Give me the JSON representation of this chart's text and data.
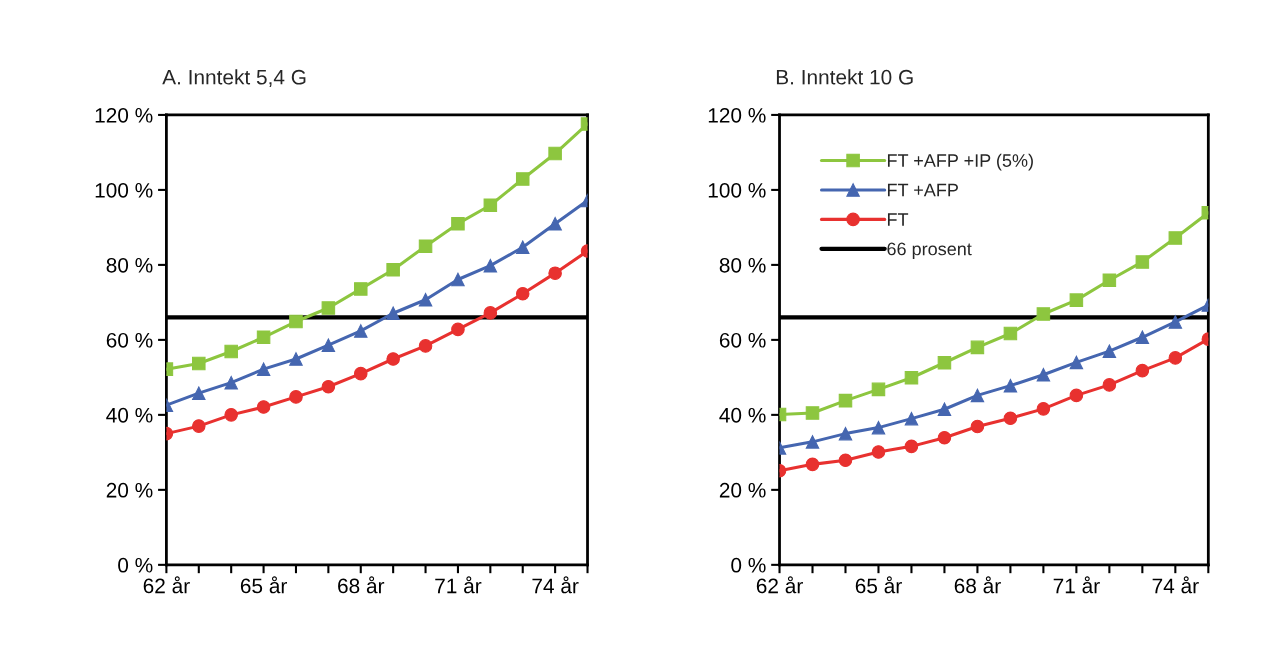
{
  "chart_data": [
    {
      "type": "line",
      "title": "A. Inntekt 5,4 G",
      "categories": [
        "62 år",
        null,
        null,
        "65 år",
        null,
        null,
        "68 år",
        null,
        null,
        "71 år",
        null,
        null,
        "74 år",
        null
      ],
      "series": [
        {
          "color": "#8dc63f",
          "marker": "square",
          "values": [
            52.2,
            53.7,
            56.9,
            60.7,
            64.9,
            68.5,
            73.6,
            78.7,
            85,
            91,
            95.9,
            102.9,
            109.7,
            117.6
          ]
        },
        {
          "color": "#4566b0",
          "marker": "triangle",
          "values": [
            42.6,
            45.8,
            48.6,
            52.2,
            54.9,
            58.6,
            62.4,
            67.1,
            70.7,
            76.1,
            79.8,
            84.7,
            91,
            97.2
          ]
        },
        {
          "color": "#e8312f",
          "marker": "circle",
          "values": [
            35,
            37,
            40,
            42.1,
            44.8,
            47.5,
            51,
            54.9,
            58.4,
            62.8,
            67.2,
            72.3,
            77.8,
            83.7
          ]
        }
      ],
      "ref_lines": [
        {
          "axis": "y",
          "value": 66,
          "color": "#000000"
        }
      ],
      "ylim": [
        0,
        120
      ],
      "yticks": [
        {
          "value": 0,
          "label": "0 %"
        },
        {
          "value": 20,
          "label": "20 %"
        },
        {
          "value": 40,
          "label": "40 %"
        },
        {
          "value": 60,
          "label": "60 %"
        },
        {
          "value": 80,
          "label": "80 %"
        },
        {
          "value": 100,
          "label": "100 %"
        },
        {
          "value": 120,
          "label": "120 %"
        }
      ],
      "grid": false,
      "legend": false
    },
    {
      "type": "line",
      "title": "B. Inntekt 10 G",
      "categories": [
        "62 år",
        null,
        null,
        "65 år",
        null,
        null,
        "68 år",
        null,
        null,
        "71 år",
        null,
        null,
        "74 år",
        null
      ],
      "series": [
        {
          "name": "FT +AFP +IP (5%)",
          "color": "#8dc63f",
          "marker": "square",
          "values": [
            40.1,
            40.5,
            43.8,
            46.8,
            49.9,
            53.9,
            58,
            61.7,
            66.9,
            70.6,
            75.9,
            80.8,
            87.2,
            93.9
          ]
        },
        {
          "name": "FT +AFP",
          "color": "#4566b0",
          "marker": "triangle",
          "values": [
            31.2,
            32.8,
            35,
            36.6,
            39,
            41.5,
            45.2,
            47.8,
            50.7,
            54,
            57,
            60.7,
            64.8,
            69.3
          ]
        },
        {
          "name": "FT",
          "color": "#e8312f",
          "marker": "circle",
          "values": [
            25.1,
            26.8,
            27.9,
            30.1,
            31.6,
            33.9,
            36.9,
            39.1,
            41.6,
            45.2,
            48,
            51.8,
            55.2,
            60.2
          ]
        }
      ],
      "ref_lines": [
        {
          "axis": "y",
          "value": 66,
          "label": "66 prosent",
          "color": "#000000"
        }
      ],
      "ylim": [
        0,
        120
      ],
      "yticks": [
        {
          "value": 0,
          "label": "0 %"
        },
        {
          "value": 20,
          "label": "20 %"
        },
        {
          "value": 40,
          "label": "40 %"
        },
        {
          "value": 60,
          "label": "60 %"
        },
        {
          "value": 80,
          "label": "80 %"
        },
        {
          "value": 100,
          "label": "100 %"
        },
        {
          "value": 120,
          "label": "120 %"
        }
      ],
      "grid": false,
      "legend": "top left"
    }
  ]
}
